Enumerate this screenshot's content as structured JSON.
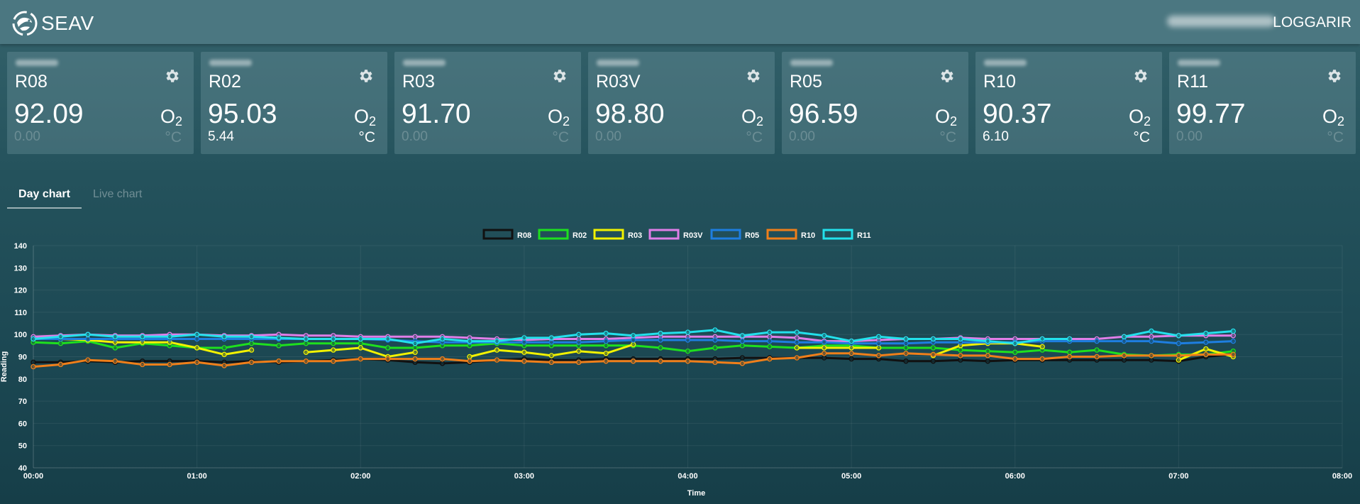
{
  "app": {
    "title": "SEAV",
    "logout_label": "LOGGARIR"
  },
  "sensors": [
    {
      "name": "R08",
      "value": "92.09",
      "unit": "O",
      "unit_sub": "2",
      "temp": "0.00",
      "temp_unit": "°C",
      "temp_active": false
    },
    {
      "name": "R02",
      "value": "95.03",
      "unit": "O",
      "unit_sub": "2",
      "temp": "5.44",
      "temp_unit": "°C",
      "temp_active": true
    },
    {
      "name": "R03",
      "value": "91.70",
      "unit": "O",
      "unit_sub": "2",
      "temp": "0.00",
      "temp_unit": "°C",
      "temp_active": false
    },
    {
      "name": "R03V",
      "value": "98.80",
      "unit": "O",
      "unit_sub": "2",
      "temp": "0.00",
      "temp_unit": "°C",
      "temp_active": false
    },
    {
      "name": "R05",
      "value": "96.59",
      "unit": "O",
      "unit_sub": "2",
      "temp": "0.00",
      "temp_unit": "°C",
      "temp_active": false
    },
    {
      "name": "R10",
      "value": "90.37",
      "unit": "O",
      "unit_sub": "2",
      "temp": "6.10",
      "temp_unit": "°C",
      "temp_active": true
    },
    {
      "name": "R11",
      "value": "99.77",
      "unit": "O",
      "unit_sub": "2",
      "temp": "0.00",
      "temp_unit": "°C",
      "temp_active": false
    }
  ],
  "tabs": {
    "day_chart": "Day chart",
    "live_chart": "Live chart"
  },
  "chart_data": {
    "type": "line",
    "title": "",
    "xlabel": "Time",
    "ylabel": "Reading",
    "ylim": [
      40,
      140
    ],
    "yticks": [
      40,
      50,
      60,
      70,
      80,
      90,
      100,
      110,
      120,
      130,
      140
    ],
    "xlim": [
      "00:00",
      "08:00"
    ],
    "xticks": [
      "00:00",
      "01:00",
      "02:00",
      "03:00",
      "04:00",
      "05:00",
      "06:00",
      "07:00",
      "08:00"
    ],
    "grid": true,
    "legend_position": "top",
    "x": [
      "00:00",
      "00:10",
      "00:20",
      "00:30",
      "00:40",
      "00:50",
      "01:00",
      "01:10",
      "01:20",
      "01:30",
      "01:40",
      "01:50",
      "02:00",
      "02:10",
      "02:20",
      "02:30",
      "02:40",
      "02:50",
      "03:00",
      "03:10",
      "03:20",
      "03:30",
      "03:40",
      "03:50",
      "04:00",
      "04:10",
      "04:20",
      "04:30",
      "04:40",
      "04:50",
      "05:00",
      "05:10",
      "05:20",
      "05:30",
      "05:40",
      "05:50",
      "06:00",
      "06:10",
      "06:20",
      "06:30",
      "06:40",
      "06:50",
      "07:00",
      "07:10",
      "07:20"
    ],
    "series": [
      {
        "name": "R08",
        "color": "#111111",
        "values": [
          87.5,
          87.5,
          88,
          87.5,
          88,
          88,
          88,
          87.5,
          88,
          87.5,
          88,
          88.5,
          89,
          88.5,
          87.5,
          87,
          87.5,
          88.5,
          89,
          88.5,
          88.5,
          89,
          89,
          89,
          89,
          89,
          89.5,
          89.5,
          89.5,
          89.5,
          89,
          89,
          88,
          88,
          88.5,
          88,
          88.5,
          88.5,
          88.5,
          88.5,
          88.5,
          88.5,
          88,
          90,
          91
        ]
      },
      {
        "name": "R02",
        "color": "#1ee01e",
        "values": [
          96.5,
          96,
          97,
          94,
          96,
          95,
          94,
          94,
          96,
          95,
          96,
          96,
          96,
          94,
          94,
          95,
          95,
          96,
          95,
          95,
          95,
          95,
          95,
          94,
          92.5,
          94,
          95,
          94.5,
          94,
          95,
          95,
          94,
          94,
          94,
          93,
          92.5,
          92,
          93,
          92,
          93,
          91,
          90.5,
          91,
          91,
          92.5
        ]
      },
      {
        "name": "R03",
        "color": "#f2f200",
        "values": [
          98,
          98,
          97.5,
          96.5,
          96.5,
          96.5,
          94,
          91,
          93,
          null,
          92,
          93,
          94,
          90,
          92,
          null,
          90,
          93,
          92,
          90.5,
          92.5,
          91.5,
          95.5,
          null,
          null,
          null,
          null,
          null,
          94,
          94,
          94,
          94,
          null,
          90.5,
          95,
          96,
          96,
          94.5,
          null,
          null,
          null,
          null,
          88.5,
          93.5,
          90
        ]
      },
      {
        "name": "R03V",
        "color": "#e07ee8",
        "values": [
          99,
          99.5,
          100,
          99.5,
          99.5,
          100,
          100,
          99.5,
          99.5,
          100,
          99.5,
          99.5,
          99,
          99,
          99,
          99,
          98.5,
          98,
          97.5,
          98,
          98,
          98,
          98.5,
          99,
          99,
          99,
          99,
          99,
          98.5,
          97,
          97,
          97.5,
          98,
          98,
          98.5,
          98,
          98,
          98,
          98,
          98,
          99,
          99,
          99.5,
          99.5,
          99.5
        ]
      },
      {
        "name": "R05",
        "color": "#1e7ee0",
        "values": [
          98,
          98,
          98,
          98,
          98,
          98,
          98,
          98,
          98,
          98,
          98,
          98,
          98,
          97.5,
          97,
          96.5,
          96.5,
          96.5,
          96.5,
          96.5,
          96.5,
          97,
          97.5,
          97.5,
          97.5,
          97.5,
          97,
          97,
          96.5,
          96.5,
          96,
          96,
          96,
          96.5,
          96.5,
          96.5,
          96.5,
          97,
          97,
          97,
          97,
          97,
          96,
          96.5,
          97
        ]
      },
      {
        "name": "R10",
        "color": "#f07f1a",
        "values": [
          85.5,
          86.5,
          88.5,
          88,
          86.5,
          86.5,
          87.5,
          86,
          87.5,
          88,
          88,
          88,
          89,
          89,
          89,
          89,
          88,
          88.5,
          88,
          87.5,
          87.5,
          88,
          88,
          88,
          88,
          87.5,
          87,
          89,
          89.5,
          91.5,
          91.5,
          90.5,
          91.5,
          91,
          90.5,
          90.5,
          89,
          89,
          90,
          90,
          90.5,
          90.5,
          90.5,
          91,
          91
        ]
      },
      {
        "name": "R11",
        "color": "#23e1ec",
        "values": [
          98,
          99,
          100,
          99,
          99,
          99,
          100,
          99,
          99,
          98.5,
          98,
          98,
          98,
          98,
          96,
          98,
          97,
          97,
          98.5,
          98.5,
          100,
          100.5,
          99.5,
          100.5,
          101,
          102,
          99.5,
          101,
          101,
          99.5,
          97,
          99,
          98,
          98,
          98,
          97,
          96,
          98,
          98,
          null,
          99,
          101.5,
          99.5,
          100.5,
          101.5
        ]
      }
    ]
  }
}
